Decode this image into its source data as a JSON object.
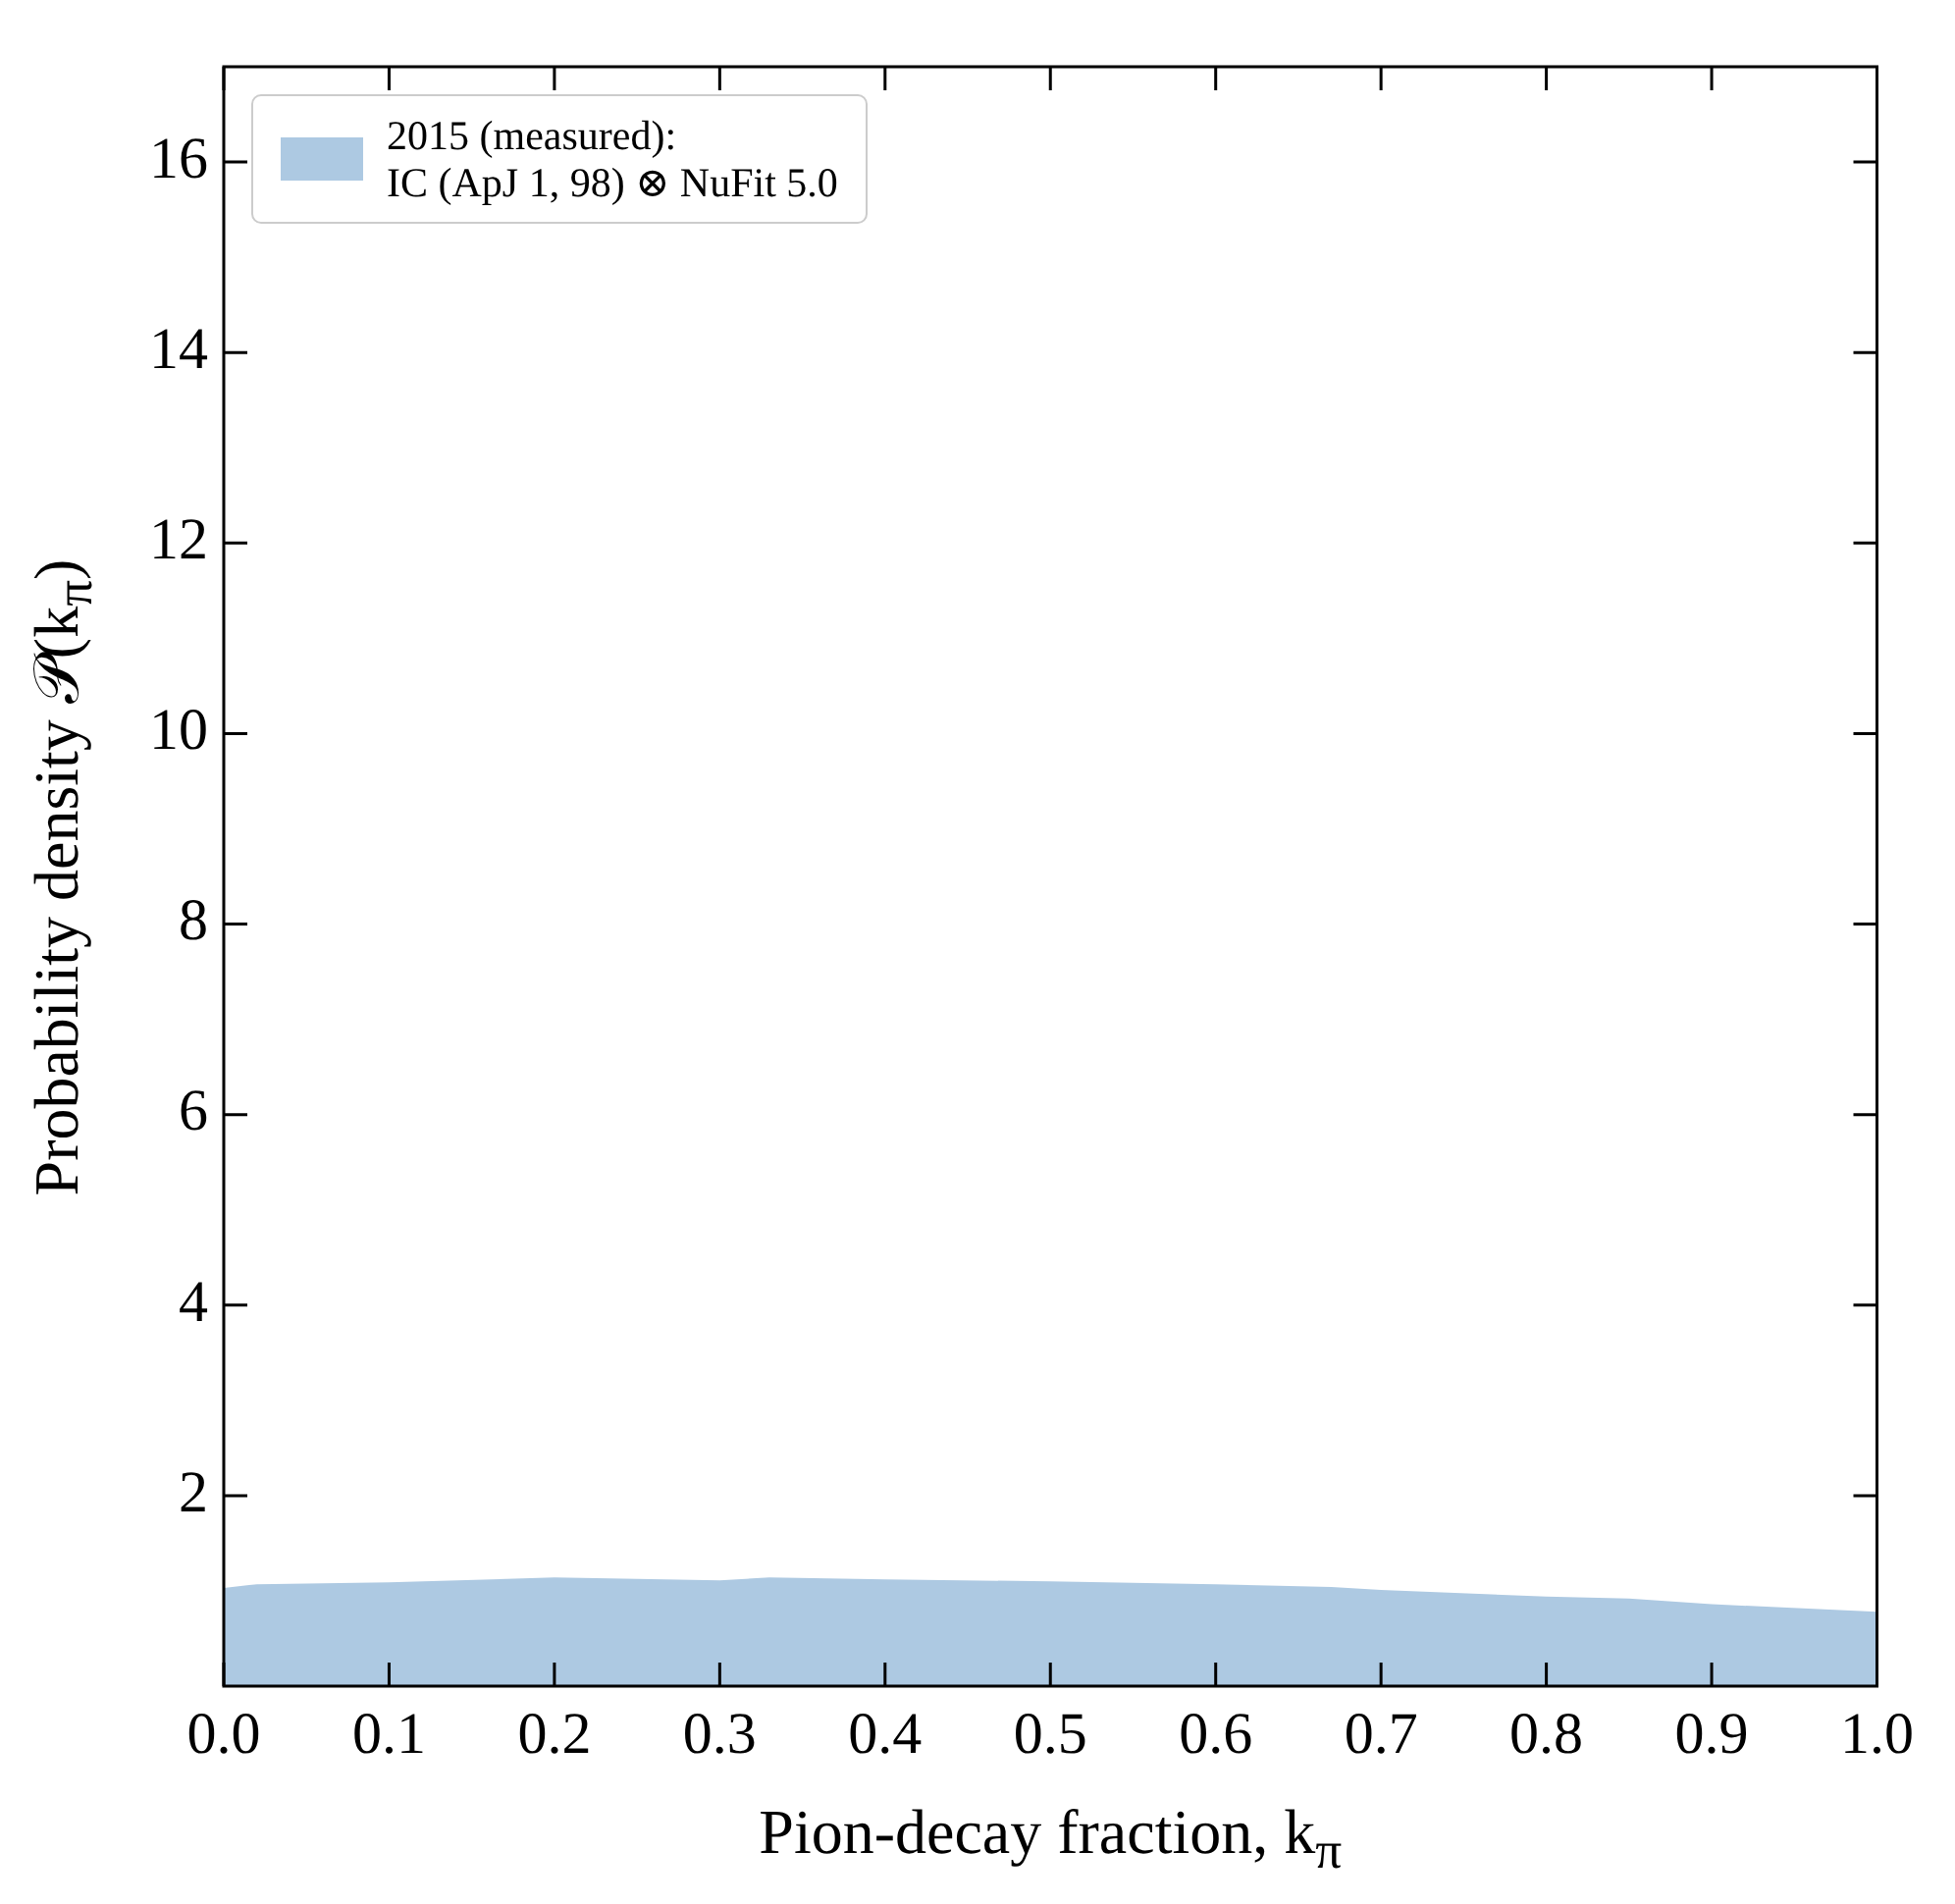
{
  "chart_data": {
    "type": "area",
    "xlabel": "Pion-decay fraction, k$_{π}$",
    "ylabel": "Probability density 𝒫(k$_{π}$)",
    "x": [
      0,
      0.02,
      0.1,
      0.2,
      0.3,
      0.33,
      0.4,
      0.5,
      0.6,
      0.67,
      0.7,
      0.8,
      0.85,
      0.9,
      1.0
    ],
    "series": [
      {
        "name": "2015 (measured):\nIC (ApJ 1, 98) ⊗ NuFit 5.0",
        "color": "#adc9e2",
        "values": [
          1.03,
          1.07,
          1.09,
          1.14,
          1.11,
          1.14,
          1.12,
          1.1,
          1.07,
          1.04,
          1.01,
          0.94,
          0.92,
          0.86,
          0.78
        ]
      }
    ],
    "xlim": [
      0,
      1
    ],
    "ylim": [
      0,
      17
    ],
    "xticks": [
      {
        "value": 0,
        "label": "0.0"
      },
      0.1,
      0.2,
      0.3,
      0.4,
      0.5,
      0.6,
      0.7,
      0.8,
      0.9,
      {
        "value": 1,
        "label": "1.0"
      }
    ],
    "yticks": [
      2,
      4,
      6,
      8,
      10,
      12,
      14,
      16
    ],
    "legend": "top left",
    "grid": false
  }
}
